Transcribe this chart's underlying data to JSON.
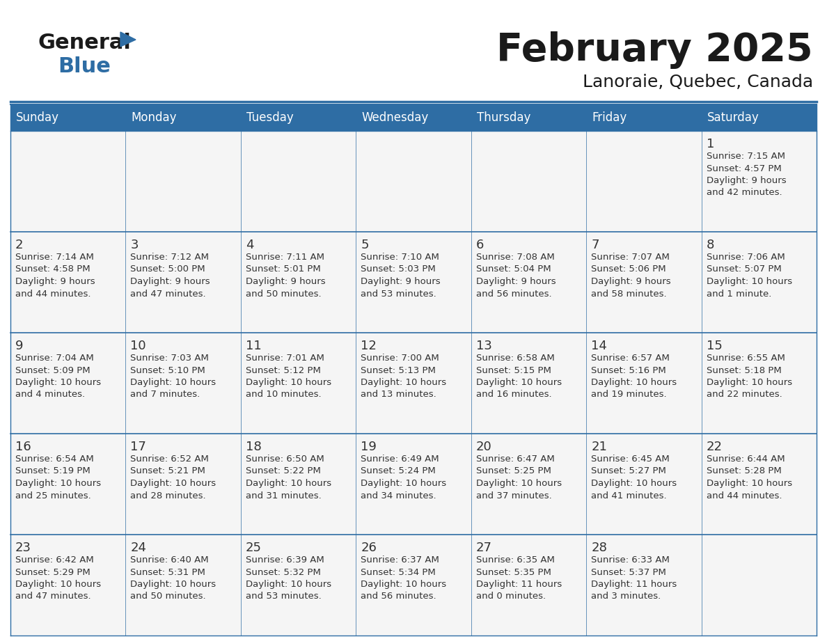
{
  "title": "February 2025",
  "subtitle": "Lanoraie, Quebec, Canada",
  "days_of_week": [
    "Sunday",
    "Monday",
    "Tuesday",
    "Wednesday",
    "Thursday",
    "Friday",
    "Saturday"
  ],
  "header_bg": "#2e6da4",
  "header_text_color": "#ffffff",
  "cell_bg": "#f5f5f5",
  "cell_bg_white": "#ffffff",
  "cell_text_color": "#333333",
  "day_num_color": "#333333",
  "border_color": "#2e6da4",
  "row_line_color": "#2e6da4",
  "title_color": "#1a1a1a",
  "subtitle_color": "#1a1a1a",
  "logo_general_color": "#1a1a1a",
  "logo_blue_color": "#2e6da4",
  "logo_triangle_color": "#2e6da4",
  "calendar": [
    [
      {
        "day": 0,
        "info": ""
      },
      {
        "day": 0,
        "info": ""
      },
      {
        "day": 0,
        "info": ""
      },
      {
        "day": 0,
        "info": ""
      },
      {
        "day": 0,
        "info": ""
      },
      {
        "day": 0,
        "info": ""
      },
      {
        "day": 1,
        "info": "Sunrise: 7:15 AM\nSunset: 4:57 PM\nDaylight: 9 hours\nand 42 minutes."
      }
    ],
    [
      {
        "day": 2,
        "info": "Sunrise: 7:14 AM\nSunset: 4:58 PM\nDaylight: 9 hours\nand 44 minutes."
      },
      {
        "day": 3,
        "info": "Sunrise: 7:12 AM\nSunset: 5:00 PM\nDaylight: 9 hours\nand 47 minutes."
      },
      {
        "day": 4,
        "info": "Sunrise: 7:11 AM\nSunset: 5:01 PM\nDaylight: 9 hours\nand 50 minutes."
      },
      {
        "day": 5,
        "info": "Sunrise: 7:10 AM\nSunset: 5:03 PM\nDaylight: 9 hours\nand 53 minutes."
      },
      {
        "day": 6,
        "info": "Sunrise: 7:08 AM\nSunset: 5:04 PM\nDaylight: 9 hours\nand 56 minutes."
      },
      {
        "day": 7,
        "info": "Sunrise: 7:07 AM\nSunset: 5:06 PM\nDaylight: 9 hours\nand 58 minutes."
      },
      {
        "day": 8,
        "info": "Sunrise: 7:06 AM\nSunset: 5:07 PM\nDaylight: 10 hours\nand 1 minute."
      }
    ],
    [
      {
        "day": 9,
        "info": "Sunrise: 7:04 AM\nSunset: 5:09 PM\nDaylight: 10 hours\nand 4 minutes."
      },
      {
        "day": 10,
        "info": "Sunrise: 7:03 AM\nSunset: 5:10 PM\nDaylight: 10 hours\nand 7 minutes."
      },
      {
        "day": 11,
        "info": "Sunrise: 7:01 AM\nSunset: 5:12 PM\nDaylight: 10 hours\nand 10 minutes."
      },
      {
        "day": 12,
        "info": "Sunrise: 7:00 AM\nSunset: 5:13 PM\nDaylight: 10 hours\nand 13 minutes."
      },
      {
        "day": 13,
        "info": "Sunrise: 6:58 AM\nSunset: 5:15 PM\nDaylight: 10 hours\nand 16 minutes."
      },
      {
        "day": 14,
        "info": "Sunrise: 6:57 AM\nSunset: 5:16 PM\nDaylight: 10 hours\nand 19 minutes."
      },
      {
        "day": 15,
        "info": "Sunrise: 6:55 AM\nSunset: 5:18 PM\nDaylight: 10 hours\nand 22 minutes."
      }
    ],
    [
      {
        "day": 16,
        "info": "Sunrise: 6:54 AM\nSunset: 5:19 PM\nDaylight: 10 hours\nand 25 minutes."
      },
      {
        "day": 17,
        "info": "Sunrise: 6:52 AM\nSunset: 5:21 PM\nDaylight: 10 hours\nand 28 minutes."
      },
      {
        "day": 18,
        "info": "Sunrise: 6:50 AM\nSunset: 5:22 PM\nDaylight: 10 hours\nand 31 minutes."
      },
      {
        "day": 19,
        "info": "Sunrise: 6:49 AM\nSunset: 5:24 PM\nDaylight: 10 hours\nand 34 minutes."
      },
      {
        "day": 20,
        "info": "Sunrise: 6:47 AM\nSunset: 5:25 PM\nDaylight: 10 hours\nand 37 minutes."
      },
      {
        "day": 21,
        "info": "Sunrise: 6:45 AM\nSunset: 5:27 PM\nDaylight: 10 hours\nand 41 minutes."
      },
      {
        "day": 22,
        "info": "Sunrise: 6:44 AM\nSunset: 5:28 PM\nDaylight: 10 hours\nand 44 minutes."
      }
    ],
    [
      {
        "day": 23,
        "info": "Sunrise: 6:42 AM\nSunset: 5:29 PM\nDaylight: 10 hours\nand 47 minutes."
      },
      {
        "day": 24,
        "info": "Sunrise: 6:40 AM\nSunset: 5:31 PM\nDaylight: 10 hours\nand 50 minutes."
      },
      {
        "day": 25,
        "info": "Sunrise: 6:39 AM\nSunset: 5:32 PM\nDaylight: 10 hours\nand 53 minutes."
      },
      {
        "day": 26,
        "info": "Sunrise: 6:37 AM\nSunset: 5:34 PM\nDaylight: 10 hours\nand 56 minutes."
      },
      {
        "day": 27,
        "info": "Sunrise: 6:35 AM\nSunset: 5:35 PM\nDaylight: 11 hours\nand 0 minutes."
      },
      {
        "day": 28,
        "info": "Sunrise: 6:33 AM\nSunset: 5:37 PM\nDaylight: 11 hours\nand 3 minutes."
      },
      {
        "day": 0,
        "info": ""
      }
    ]
  ]
}
